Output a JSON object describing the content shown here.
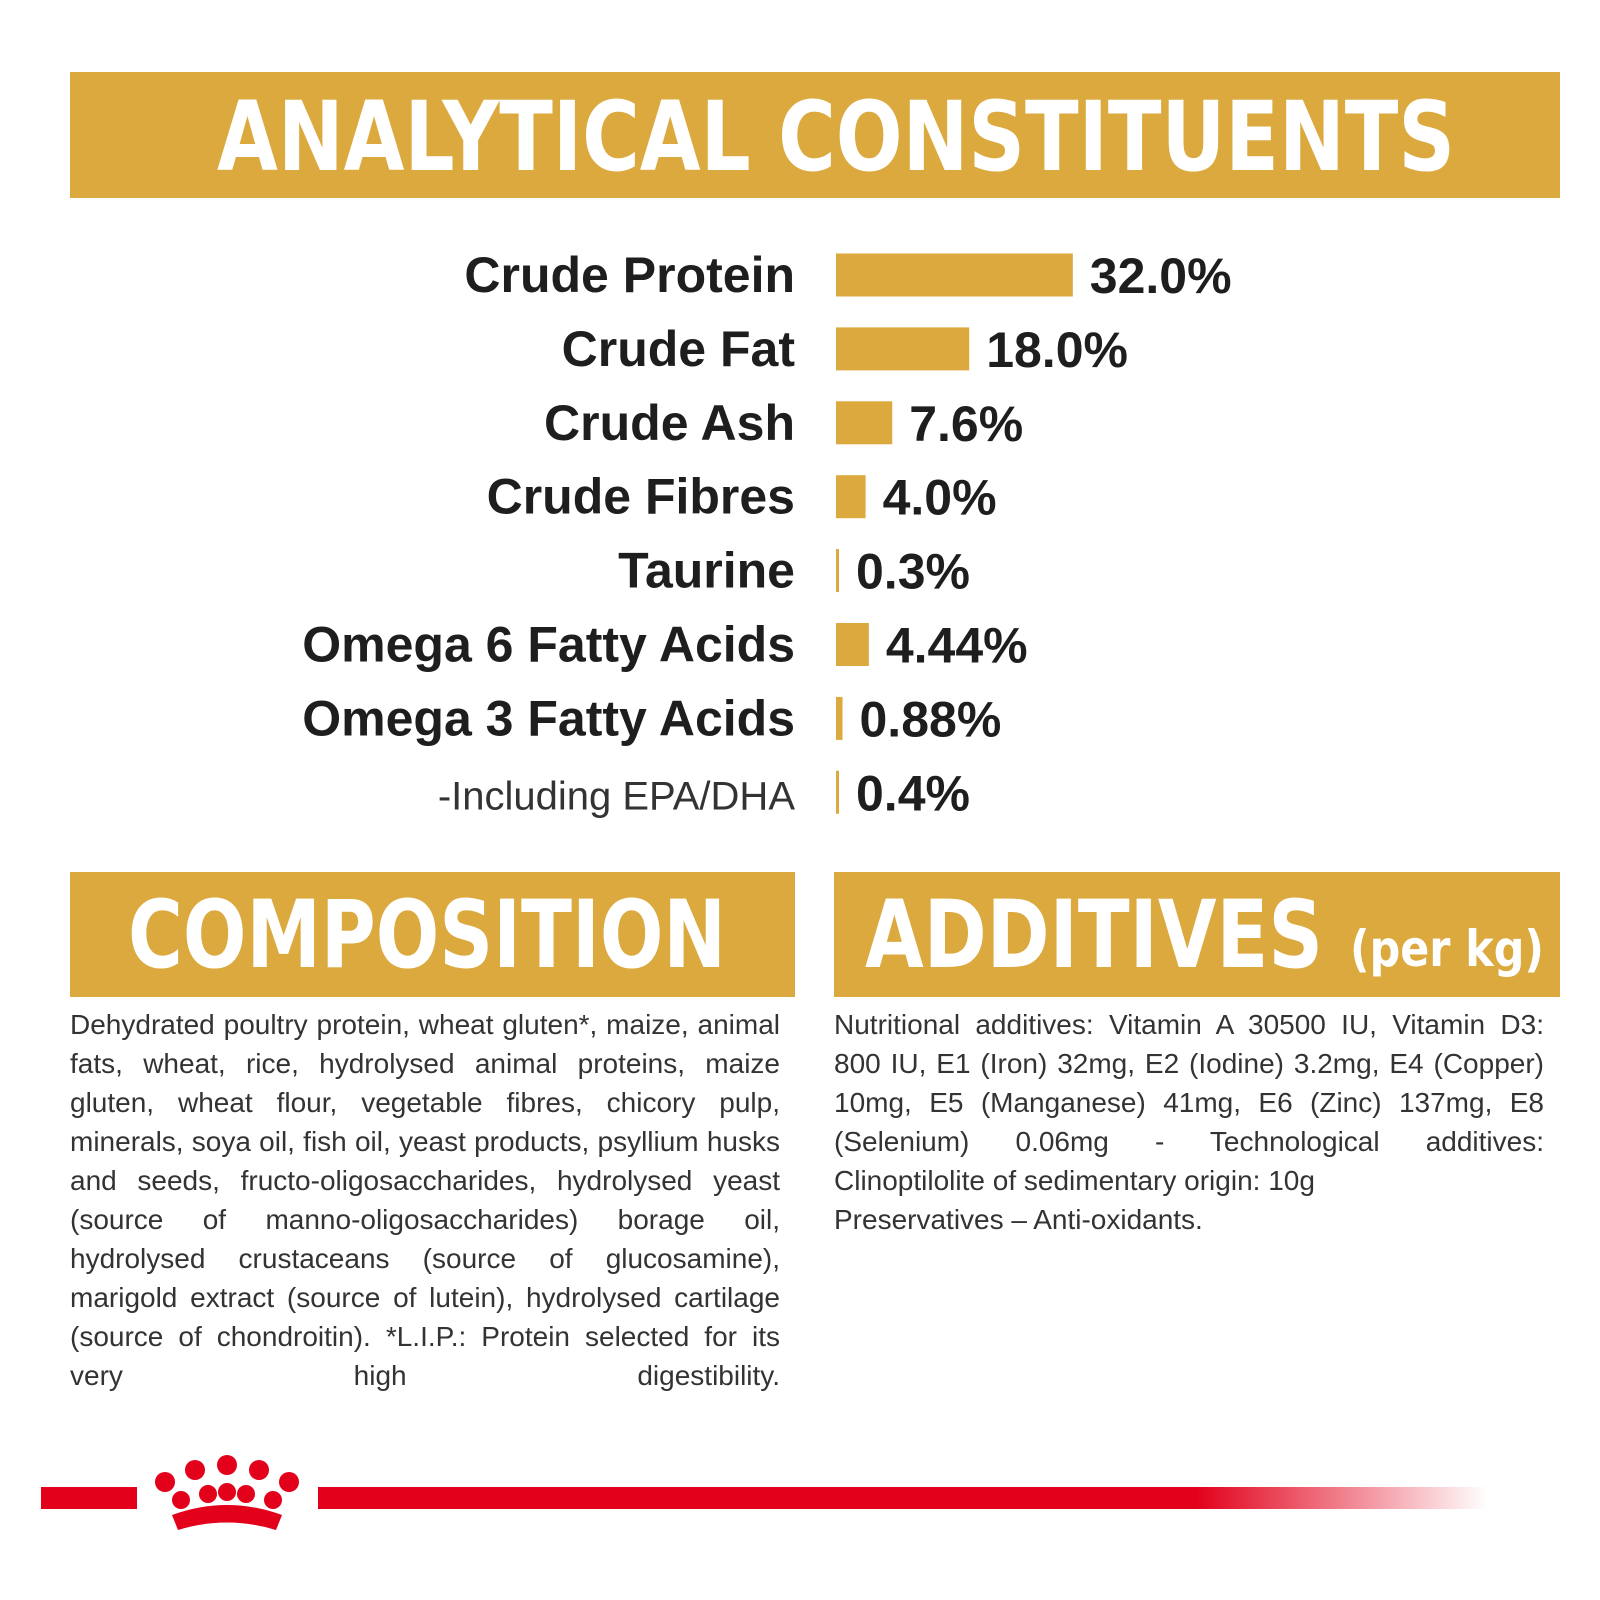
{
  "chart_data": {
    "type": "bar",
    "orientation": "horizontal",
    "title": "ANALYTICAL CONSTITUENTS",
    "categories": [
      "Crude Protein",
      "Crude Fat",
      "Crude Ash",
      "Crude Fibres",
      "Taurine",
      "Omega 6 Fatty Acids",
      "Omega 3 Fatty Acids",
      "-Including EPA/DHA"
    ],
    "values": [
      32.0,
      18.0,
      7.6,
      4.0,
      0.3,
      4.44,
      0.88,
      0.4
    ],
    "value_labels": [
      "32.0%",
      "18.0%",
      "7.6%",
      "4.0%",
      "0.3%",
      "4.44%",
      "0.88%",
      "0.4%"
    ],
    "color": "#dba93e"
  },
  "composition": {
    "title": "COMPOSITION",
    "text": "Dehydrated poultry protein, wheat gluten*, maize, animal fats, wheat, rice, hydrolysed animal proteins, maize gluten, wheat flour, vegetable fibres, chicory pulp, minerals, soya oil, fish oil, yeast products, psyllium husks and seeds, fructo-oligosaccharides, hydrolysed yeast (source of manno-oligosaccharides) borage oil, hydrolysed crustaceans (source of glucosamine), marigold extract (source of lutein), hydrolysed cartilage (source of chondroitin). *L.I.P.: Protein selected for its very high digestibility."
  },
  "additives": {
    "title": "ADDITIVES",
    "title_note": "(per kg)",
    "paragraphs": [
      "Nutritional additives: Vitamin A 30500 IU, Vitamin D3: 800 IU, E1 (Iron) 32mg, E2 (Iodine) 3.2mg, E4 (Copper) 10mg, E5 (Manganese) 41mg, E6 (Zinc) 137mg, E8 (Selenium) 0.06mg - Technological additives: Clinoptilolite of sedimentary origin: 10g",
      "Preservatives – Anti-oxidants."
    ]
  }
}
